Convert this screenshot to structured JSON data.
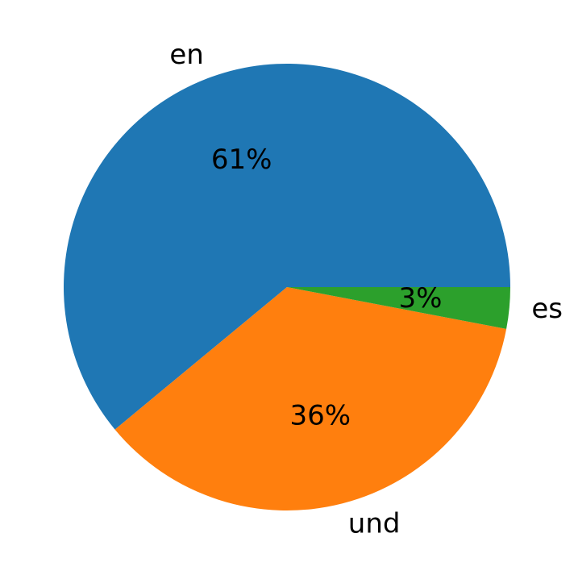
{
  "chart_data": {
    "type": "pie",
    "categories": [
      "en",
      "und",
      "es"
    ],
    "values": [
      61,
      36,
      3
    ],
    "value_labels": [
      "61%",
      "36%",
      "3%"
    ],
    "colors": [
      "#1f77b4",
      "#ff7f0e",
      "#2ca02c"
    ]
  }
}
